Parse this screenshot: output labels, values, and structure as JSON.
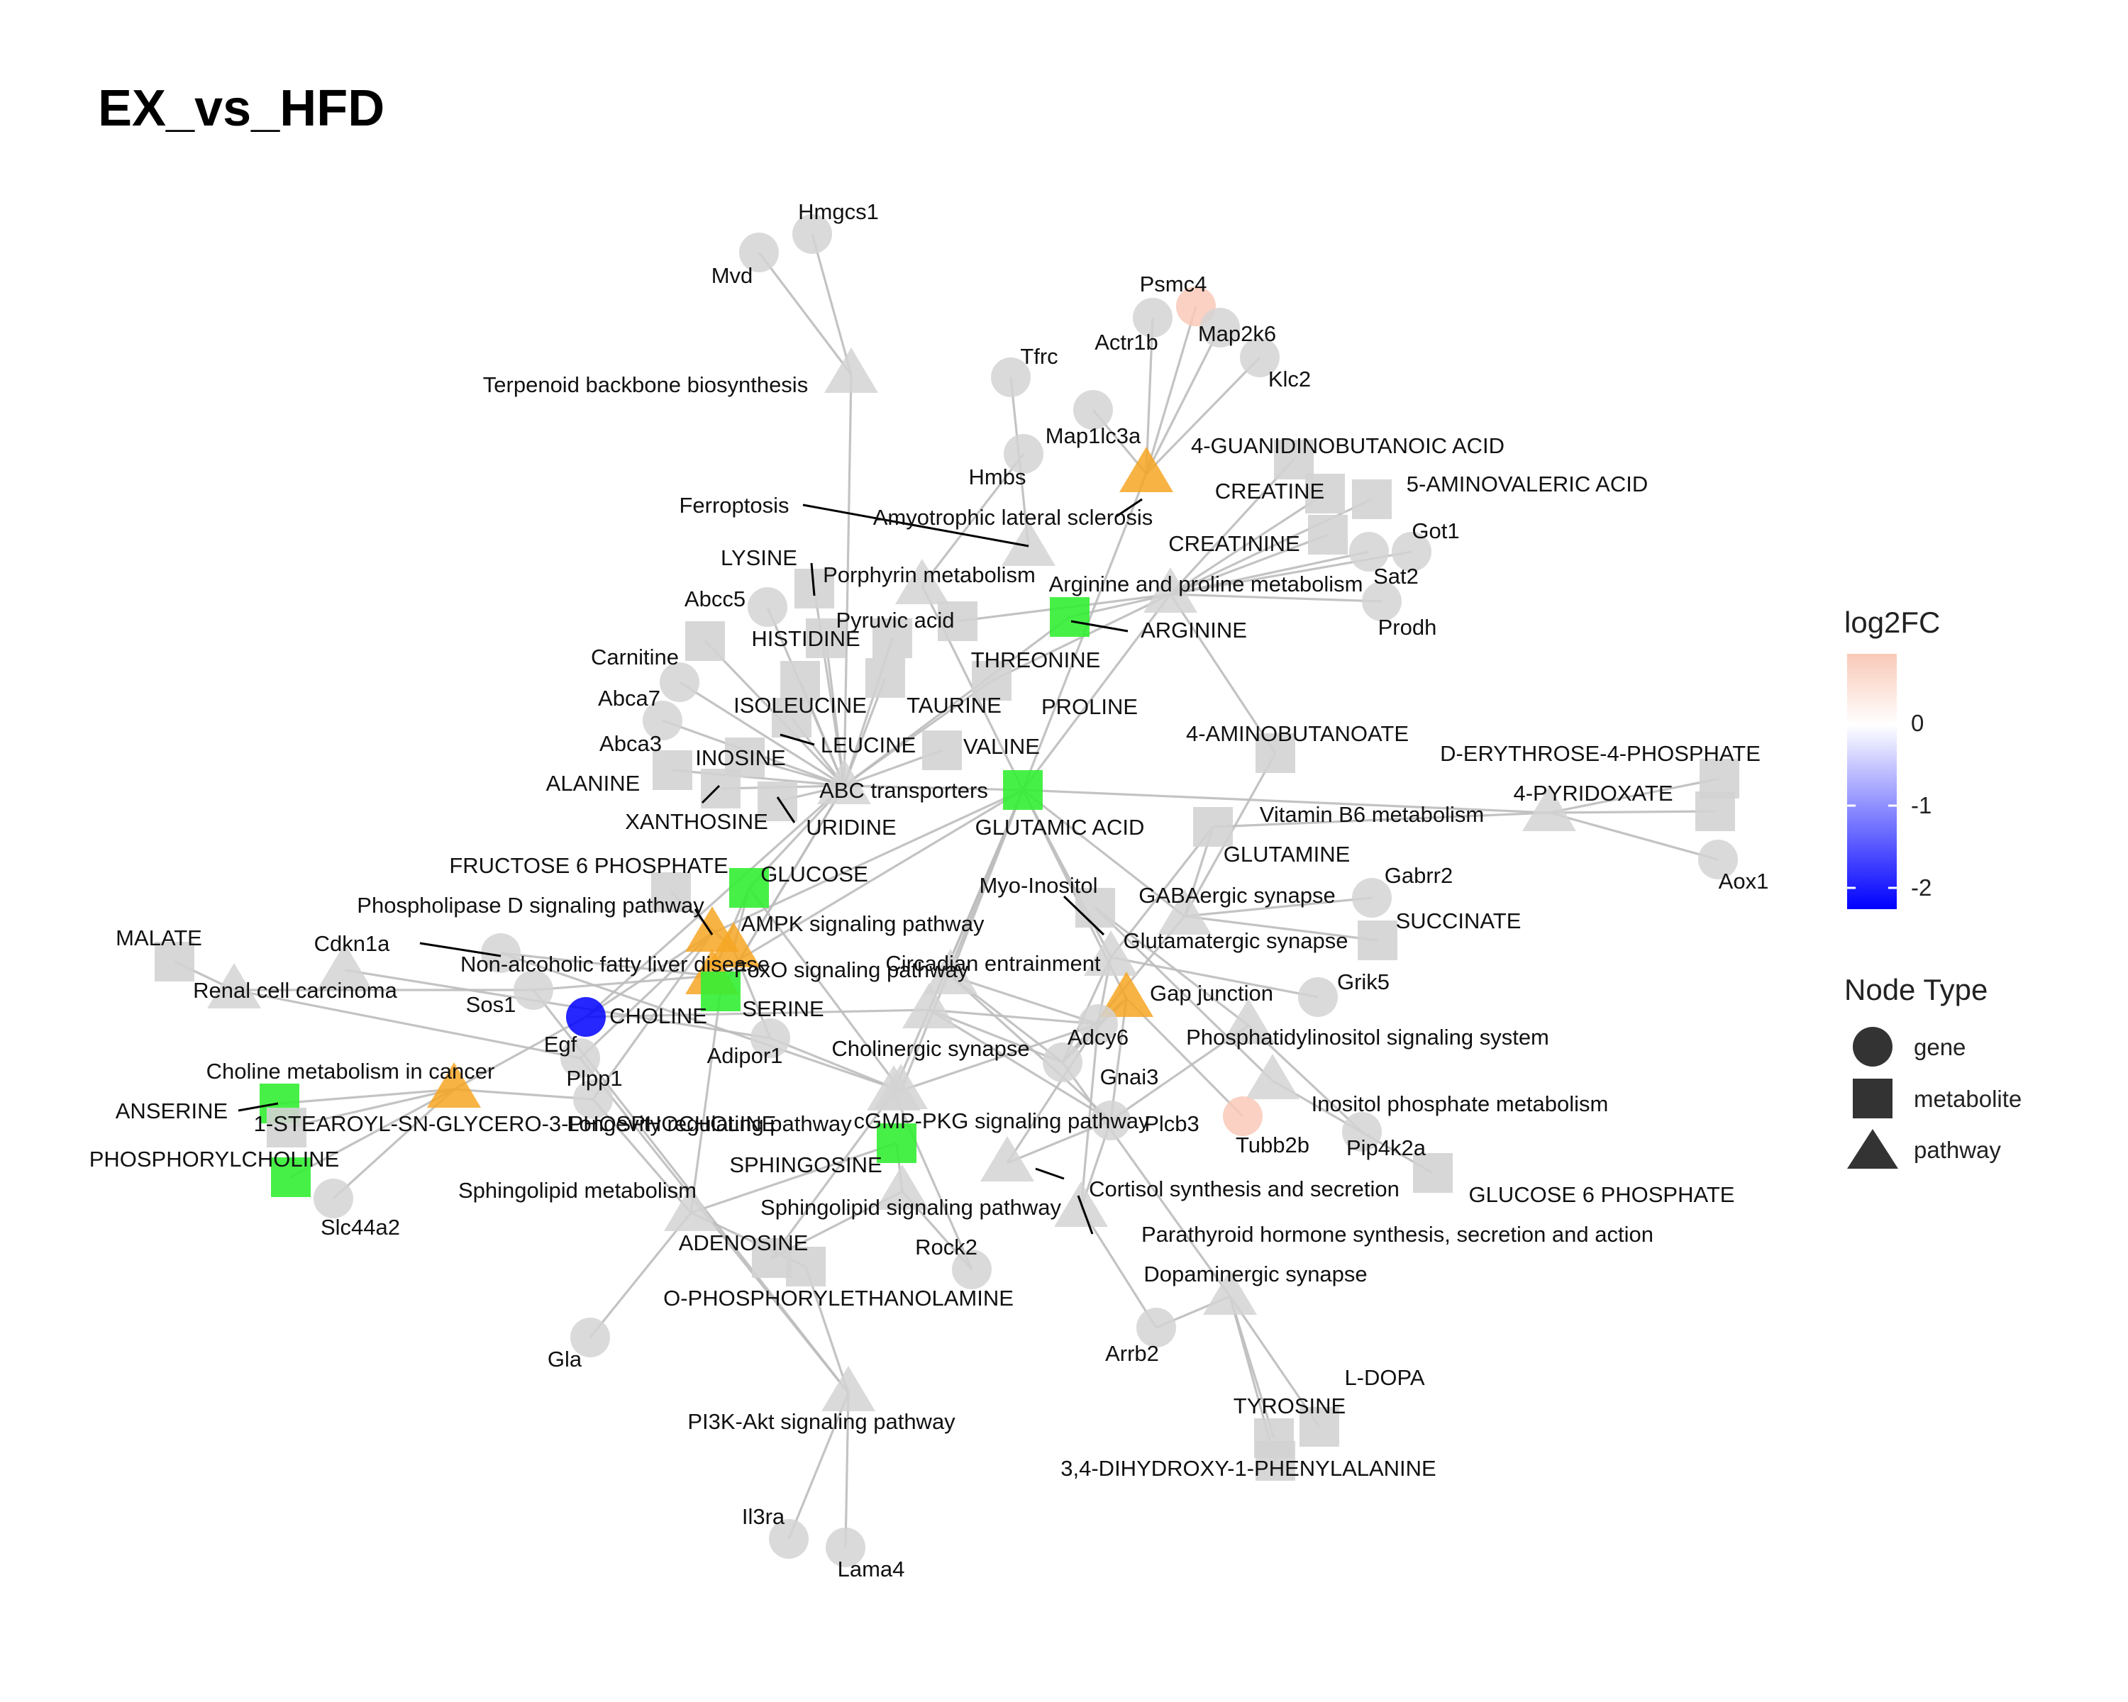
{
  "title": "EX_vs_HFD",
  "colors": {
    "neutral": "#d3d3d3",
    "edge": "#bdbdbd",
    "up": "#f9c9b8",
    "down": "#0000ff",
    "green": "#33ee33",
    "orange": "#f6a623"
  },
  "legend": {
    "color_title": "log2FC",
    "color_ticks": [
      "0",
      "-1",
      "-2"
    ],
    "type_title": "Node Type",
    "types": [
      {
        "shape": "circle",
        "label": "gene"
      },
      {
        "shape": "square",
        "label": "metabolite"
      },
      {
        "shape": "triangle",
        "label": "pathway"
      }
    ]
  },
  "nodes": [
    {
      "id": "Hmgcs1",
      "label": "Hmgcs1",
      "shape": "circle",
      "fill": "neutral"
    },
    {
      "id": "Mvd",
      "label": "Mvd",
      "shape": "circle",
      "fill": "neutral"
    },
    {
      "id": "Terpenoid",
      "label": "Terpenoid backbone biosynthesis",
      "shape": "triangle",
      "fill": "neutral"
    },
    {
      "id": "Psmc4",
      "label": "Psmc4",
      "shape": "circle",
      "fill": "up"
    },
    {
      "id": "Actr1b",
      "label": "Actr1b",
      "shape": "circle",
      "fill": "neutral"
    },
    {
      "id": "Map2k6",
      "label": "Map2k6",
      "shape": "circle",
      "fill": "neutral"
    },
    {
      "id": "Klc2",
      "label": "Klc2",
      "shape": "circle",
      "fill": "neutral"
    },
    {
      "id": "Tfrc",
      "label": "Tfrc",
      "shape": "circle",
      "fill": "neutral"
    },
    {
      "id": "Map1lc3a",
      "label": "Map1lc3a",
      "shape": "circle",
      "fill": "neutral"
    },
    {
      "id": "Hmbs",
      "label": "Hmbs",
      "shape": "circle",
      "fill": "neutral"
    },
    {
      "id": "GBA",
      "label": "4-GUANIDINOBUTANOIC ACID",
      "shape": "square",
      "fill": "neutral"
    },
    {
      "id": "Creatine",
      "label": "CREATINE",
      "shape": "square",
      "fill": "neutral"
    },
    {
      "id": "AVA",
      "label": "5-AMINOVALERIC ACID",
      "shape": "square",
      "fill": "neutral"
    },
    {
      "id": "ALS",
      "label": "Amyotrophic lateral sclerosis",
      "shape": "triangle",
      "fill": "orange"
    },
    {
      "id": "Ferroptosis",
      "label": "Ferroptosis",
      "shape": "triangle",
      "fill": "neutral"
    },
    {
      "id": "Creatinine",
      "label": "CREATININE",
      "shape": "square",
      "fill": "neutral"
    },
    {
      "id": "Got1",
      "label": "Got1",
      "shape": "circle",
      "fill": "neutral"
    },
    {
      "id": "Sat2",
      "label": "Sat2",
      "shape": "circle",
      "fill": "neutral"
    },
    {
      "id": "Prodh",
      "label": "Prodh",
      "shape": "circle",
      "fill": "neutral"
    },
    {
      "id": "Lysine",
      "label": "LYSINE",
      "shape": "square",
      "fill": "neutral"
    },
    {
      "id": "Porphyrin",
      "label": "Porphyrin metabolism",
      "shape": "triangle",
      "fill": "neutral"
    },
    {
      "id": "ArgPro",
      "label": "Arginine and proline metabolism",
      "shape": "triangle",
      "fill": "neutral"
    },
    {
      "id": "Abcc5",
      "label": "Abcc5",
      "shape": "circle",
      "fill": "neutral"
    },
    {
      "id": "Pyruvic",
      "label": "Pyruvic acid",
      "shape": "square",
      "fill": "neutral"
    },
    {
      "id": "Arginine",
      "label": "ARGININE",
      "shape": "square",
      "fill": "green"
    },
    {
      "id": "Histidine",
      "label": "HISTIDINE",
      "shape": "square",
      "fill": "neutral"
    },
    {
      "id": "Threonine",
      "label": "THREONINE",
      "shape": "square",
      "fill": "neutral"
    },
    {
      "id": "Carnitine",
      "label": "Carnitine",
      "shape": "square",
      "fill": "neutral"
    },
    {
      "id": "Abca7",
      "label": "Abca7",
      "shape": "circle",
      "fill": "neutral"
    },
    {
      "id": "Isoleucine",
      "label": "ISOLEUCINE",
      "shape": "square",
      "fill": "neutral"
    },
    {
      "id": "Taurine",
      "label": "TAURINE",
      "shape": "square",
      "fill": "neutral"
    },
    {
      "id": "Proline",
      "label": "PROLINE",
      "shape": "square",
      "fill": "neutral"
    },
    {
      "id": "Abca3",
      "label": "Abca3",
      "shape": "circle",
      "fill": "neutral"
    },
    {
      "id": "Leucine",
      "label": "LEUCINE",
      "shape": "square",
      "fill": "neutral"
    },
    {
      "id": "Valine",
      "label": "VALINE",
      "shape": "square",
      "fill": "neutral"
    },
    {
      "id": "GABA",
      "label": "4-AMINOBUTANOATE",
      "shape": "square",
      "fill": "neutral"
    },
    {
      "id": "Inosine",
      "label": "INOSINE",
      "shape": "square",
      "fill": "neutral"
    },
    {
      "id": "Alanine",
      "label": "ALANINE",
      "shape": "square",
      "fill": "neutral"
    },
    {
      "id": "ABC",
      "label": "ABC transporters",
      "shape": "triangle",
      "fill": "neutral"
    },
    {
      "id": "E4P",
      "label": "D-ERYTHROSE-4-PHOSPHATE",
      "shape": "square",
      "fill": "neutral"
    },
    {
      "id": "Pyridoxate",
      "label": "4-PYRIDOXATE",
      "shape": "square",
      "fill": "neutral"
    },
    {
      "id": "Xanthosine",
      "label": "XANTHOSINE",
      "shape": "square",
      "fill": "neutral"
    },
    {
      "id": "Uridine",
      "label": "URIDINE",
      "shape": "square",
      "fill": "neutral"
    },
    {
      "id": "Glutamic",
      "label": "GLUTAMIC ACID",
      "shape": "square",
      "fill": "green"
    },
    {
      "id": "VitB6",
      "label": "Vitamin B6 metabolism",
      "shape": "triangle",
      "fill": "neutral"
    },
    {
      "id": "Glutamine",
      "label": "GLUTAMINE",
      "shape": "square",
      "fill": "neutral"
    },
    {
      "id": "Aox1",
      "label": "Aox1",
      "shape": "circle",
      "fill": "neutral"
    },
    {
      "id": "F6P",
      "label": "FRUCTOSE 6 PHOSPHATE",
      "shape": "square",
      "fill": "neutral"
    },
    {
      "id": "Glucose",
      "label": "GLUCOSE",
      "shape": "square",
      "fill": "green"
    },
    {
      "id": "Gabrr2",
      "label": "Gabrr2",
      "shape": "circle",
      "fill": "neutral"
    },
    {
      "id": "MyoInositol",
      "label": "Myo-Inositol",
      "shape": "square",
      "fill": "neutral"
    },
    {
      "id": "GABAergic",
      "label": "GABAergic synapse",
      "shape": "triangle",
      "fill": "neutral"
    },
    {
      "id": "PLD",
      "label": "Phospholipase D signaling pathway",
      "shape": "triangle",
      "fill": "orange"
    },
    {
      "id": "Succinate",
      "label": "SUCCINATE",
      "shape": "square",
      "fill": "neutral"
    },
    {
      "id": "AMPK",
      "label": "AMPK signaling pathway",
      "shape": "triangle",
      "fill": "orange"
    },
    {
      "id": "Malate",
      "label": "MALATE",
      "shape": "square",
      "fill": "neutral"
    },
    {
      "id": "Cdkn1a",
      "label": "Cdkn1a",
      "shape": "circle",
      "fill": "neutral"
    },
    {
      "id": "Glutamatergic",
      "label": "Glutamatergic synapse",
      "shape": "triangle",
      "fill": "neutral"
    },
    {
      "id": "NAFLD",
      "label": "Non-alcoholic fatty liver disease",
      "shape": "triangle",
      "fill": "neutral"
    },
    {
      "id": "FoxO",
      "label": "FoxO signaling pathway",
      "shape": "triangle",
      "fill": "orange"
    },
    {
      "id": "Circadian",
      "label": "Circadian entrainment",
      "shape": "triangle",
      "fill": "neutral"
    },
    {
      "id": "RCC",
      "label": "Renal cell carcinoma",
      "shape": "triangle",
      "fill": "neutral"
    },
    {
      "id": "GapJ",
      "label": "Gap junction",
      "shape": "triangle",
      "fill": "orange"
    },
    {
      "id": "Grik5",
      "label": "Grik5",
      "shape": "circle",
      "fill": "neutral"
    },
    {
      "id": "Sos1",
      "label": "Sos1",
      "shape": "circle",
      "fill": "neutral"
    },
    {
      "id": "Choline",
      "label": "CHOLINE",
      "shape": "circle",
      "fill": "down"
    },
    {
      "id": "Serine",
      "label": "SERINE",
      "shape": "square",
      "fill": "green"
    },
    {
      "id": "Egf",
      "label": "Egf",
      "shape": "circle",
      "fill": "neutral"
    },
    {
      "id": "Adcy6",
      "label": "Adcy6",
      "shape": "circle",
      "fill": "neutral"
    },
    {
      "id": "PIsig",
      "label": "Phosphatidylinositol signaling system",
      "shape": "triangle",
      "fill": "neutral"
    },
    {
      "id": "Adipor1",
      "label": "Adipor1",
      "shape": "circle",
      "fill": "neutral"
    },
    {
      "id": "Cholinergic",
      "label": "Cholinergic synapse",
      "shape": "triangle",
      "fill": "neutral"
    },
    {
      "id": "Gnai3",
      "label": "Gnai3",
      "shape": "circle",
      "fill": "neutral"
    },
    {
      "id": "CholineCancer",
      "label": "Choline metabolism in cancer",
      "shape": "triangle",
      "fill": "orange"
    },
    {
      "id": "Plpp1",
      "label": "Plpp1",
      "shape": "circle",
      "fill": "neutral"
    },
    {
      "id": "InsP",
      "label": "Inositol phosphate metabolism",
      "shape": "triangle",
      "fill": "neutral"
    },
    {
      "id": "Anserine",
      "label": "ANSERINE",
      "shape": "square",
      "fill": "green"
    },
    {
      "id": "Stearoyl",
      "label": "1-STEAROYL-SN-GLYCERO-3-PHOSPHOCHOLINE",
      "shape": "square",
      "fill": "neutral"
    },
    {
      "id": "Longevity",
      "label": "Longevity regulating pathway",
      "shape": "triangle",
      "fill": "neutral"
    },
    {
      "id": "cGMP",
      "label": "cGMP-PKG signaling pathway",
      "shape": "triangle",
      "fill": "neutral"
    },
    {
      "id": "Plcb3",
      "label": "Plcb3",
      "shape": "circle",
      "fill": "neutral"
    },
    {
      "id": "Tubb2b",
      "label": "Tubb2b",
      "shape": "circle",
      "fill": "up"
    },
    {
      "id": "Pip4k2a",
      "label": "Pip4k2a",
      "shape": "circle",
      "fill": "neutral"
    },
    {
      "id": "Phosphorylcholine",
      "label": "PHOSPHORYLCHOLINE",
      "shape": "square",
      "fill": "green"
    },
    {
      "id": "Sphingosine",
      "label": "SPHINGOSINE",
      "shape": "square",
      "fill": "green"
    },
    {
      "id": "Cortisol",
      "label": "Cortisol synthesis and secretion",
      "shape": "triangle",
      "fill": "neutral"
    },
    {
      "id": "G6P",
      "label": "GLUCOSE 6 PHOSPHATE",
      "shape": "square",
      "fill": "neutral"
    },
    {
      "id": "SphMet",
      "label": "Sphingolipid metabolism",
      "shape": "triangle",
      "fill": "neutral"
    },
    {
      "id": "SphSig",
      "label": "Sphingolipid signaling pathway",
      "shape": "triangle",
      "fill": "neutral"
    },
    {
      "id": "Slc44a2",
      "label": "Slc44a2",
      "shape": "circle",
      "fill": "neutral"
    },
    {
      "id": "Adenosine",
      "label": "ADENOSINE",
      "shape": "square",
      "fill": "neutral"
    },
    {
      "id": "Rock2",
      "label": "Rock2",
      "shape": "circle",
      "fill": "neutral"
    },
    {
      "id": "PTH",
      "label": "Parathyroid hormone synthesis, secretion and action",
      "shape": "triangle",
      "fill": "neutral"
    },
    {
      "id": "Dopaminergic",
      "label": "Dopaminergic synapse",
      "shape": "triangle",
      "fill": "neutral"
    },
    {
      "id": "OPE",
      "label": "O-PHOSPHORYLETHANOLAMINE",
      "shape": "square",
      "fill": "neutral"
    },
    {
      "id": "Gla",
      "label": "Gla",
      "shape": "circle",
      "fill": "neutral"
    },
    {
      "id": "Arrb2",
      "label": "Arrb2",
      "shape": "circle",
      "fill": "neutral"
    },
    {
      "id": "LDOPA",
      "label": "L-DOPA",
      "shape": "square",
      "fill": "neutral"
    },
    {
      "id": "Tyrosine",
      "label": "TYROSINE",
      "shape": "square",
      "fill": "neutral"
    },
    {
      "id": "PI3K",
      "label": "PI3K-Akt signaling pathway",
      "shape": "triangle",
      "fill": "neutral"
    },
    {
      "id": "DOPA34",
      "label": "3,4-DIHYDROXY-1-PHENYLALANINE",
      "shape": "square",
      "fill": "neutral"
    },
    {
      "id": "Il3ra",
      "label": "Il3ra",
      "shape": "circle",
      "fill": "neutral"
    },
    {
      "id": "Lama4",
      "label": "Lama4",
      "shape": "circle",
      "fill": "neutral"
    }
  ],
  "edges": [
    [
      "Hmgcs1",
      "Terpenoid"
    ],
    [
      "Mvd",
      "Terpenoid"
    ],
    [
      "Terpenoid",
      "ABC"
    ],
    [
      "Psmc4",
      "ALS"
    ],
    [
      "Actr1b",
      "ALS"
    ],
    [
      "Map2k6",
      "ALS"
    ],
    [
      "Klc2",
      "ALS"
    ],
    [
      "Map1lc3a",
      "ALS"
    ],
    [
      "Tfrc",
      "Ferroptosis"
    ],
    [
      "Hmbs",
      "Porphyrin"
    ],
    [
      "ALS",
      "Glutamic"
    ],
    [
      "GBA",
      "ArgPro"
    ],
    [
      "Creatine",
      "ArgPro"
    ],
    [
      "AVA",
      "ArgPro"
    ],
    [
      "Creatinine",
      "ArgPro"
    ],
    [
      "Got1",
      "ArgPro"
    ],
    [
      "Sat2",
      "ArgPro"
    ],
    [
      "Prodh",
      "ArgPro"
    ],
    [
      "ArgPro",
      "Arginine"
    ],
    [
      "ArgPro",
      "Proline"
    ],
    [
      "ArgPro",
      "Glutamic"
    ],
    [
      "ArgPro",
      "Pyruvic"
    ],
    [
      "ArgPro",
      "GABA"
    ],
    [
      "Lysine",
      "ABC"
    ],
    [
      "Abcc5",
      "ABC"
    ],
    [
      "Histidine",
      "ABC"
    ],
    [
      "Threonine",
      "ABC"
    ],
    [
      "Carnitine",
      "ABC"
    ],
    [
      "Abca7",
      "ABC"
    ],
    [
      "Isoleucine",
      "ABC"
    ],
    [
      "Taurine",
      "ABC"
    ],
    [
      "Proline",
      "ABC"
    ],
    [
      "Abca3",
      "ABC"
    ],
    [
      "Leucine",
      "ABC"
    ],
    [
      "Valine",
      "ABC"
    ],
    [
      "Inosine",
      "ABC"
    ],
    [
      "Alanine",
      "ABC"
    ],
    [
      "Xanthosine",
      "ABC"
    ],
    [
      "Uridine",
      "ABC"
    ],
    [
      "Glutamic",
      "ABC"
    ],
    [
      "Arginine",
      "ABC"
    ],
    [
      "Glucose",
      "ABC"
    ],
    [
      "Serine",
      "ABC"
    ],
    [
      "Choline",
      "ABC"
    ],
    [
      "Porphyrin",
      "Glutamic"
    ],
    [
      "Glutamic",
      "VitB6"
    ],
    [
      "E4P",
      "VitB6"
    ],
    [
      "Pyridoxate",
      "VitB6"
    ],
    [
      "Aox1",
      "VitB6"
    ],
    [
      "Glutamine",
      "VitB6"
    ],
    [
      "Glutamic",
      "GABAergic"
    ],
    [
      "Glutamine",
      "GABAergic"
    ],
    [
      "Gabrr2",
      "GABAergic"
    ],
    [
      "Succinate",
      "GABAergic"
    ],
    [
      "GABA",
      "GABAergic"
    ],
    [
      "Glutamic",
      "Glutamatergic"
    ],
    [
      "Glutamine",
      "Glutamatergic"
    ],
    [
      "Grik5",
      "Glutamatergic"
    ],
    [
      "Glutamic",
      "Circadian"
    ],
    [
      "Adcy6",
      "Glutamatergic"
    ],
    [
      "F6P",
      "AMPK"
    ],
    [
      "Glucose",
      "AMPK"
    ],
    [
      "Malate",
      "RCC"
    ],
    [
      "Cdkn1a",
      "FoxO"
    ],
    [
      "Sos1",
      "RCC"
    ],
    [
      "Sos1",
      "FoxO"
    ],
    [
      "Egf",
      "PLD"
    ],
    [
      "Egf",
      "RCC"
    ],
    [
      "Adipor1",
      "AMPK"
    ],
    [
      "Adipor1",
      "NAFLD"
    ],
    [
      "Glucose",
      "FoxO"
    ],
    [
      "Glutamic",
      "FoxO"
    ],
    [
      "Glutamic",
      "Cholinergic"
    ],
    [
      "Glutamic",
      "GapJ"
    ],
    [
      "Glutamic",
      "cGMP"
    ],
    [
      "Glutamic",
      "Longevity"
    ],
    [
      "Glutamic",
      "PLD"
    ],
    [
      "MyoInositol",
      "PIsig"
    ],
    [
      "MyoInositol",
      "InsP"
    ],
    [
      "Plcb3",
      "PIsig"
    ],
    [
      "Plcb3",
      "GapJ"
    ],
    [
      "Plcb3",
      "Circadian"
    ],
    [
      "Plcb3",
      "Cholinergic"
    ],
    [
      "Plcb3",
      "Cortisol"
    ],
    [
      "Plcb3",
      "PTH"
    ],
    [
      "Pip4k2a",
      "PIsig"
    ],
    [
      "Tubb2b",
      "GapJ"
    ],
    [
      "G6P",
      "InsP"
    ],
    [
      "Adcy6",
      "GapJ"
    ],
    [
      "Adcy6",
      "Circadian"
    ],
    [
      "Adcy6",
      "Cholinergic"
    ],
    [
      "Adcy6",
      "Cortisol"
    ],
    [
      "Adcy6",
      "PTH"
    ],
    [
      "Adcy6",
      "Longevity"
    ],
    [
      "Gnai3",
      "GapJ"
    ],
    [
      "Gnai3",
      "Circadian"
    ],
    [
      "Gnai3",
      "Cholinergic"
    ],
    [
      "Gnai3",
      "Dopaminergic"
    ],
    [
      "Gnai3",
      "Glutamatergic"
    ],
    [
      "Gnai3",
      "GABAergic"
    ],
    [
      "Choline",
      "CholineCancer"
    ],
    [
      "Choline",
      "Cholinergic"
    ],
    [
      "Plpp1",
      "CholineCancer"
    ],
    [
      "Plpp1",
      "PLD"
    ],
    [
      "Plpp1",
      "SphMet"
    ],
    [
      "Anserine",
      "CholineCancer"
    ],
    [
      "Stearoyl",
      "CholineCancer"
    ],
    [
      "Phosphorylcholine",
      "CholineCancer"
    ],
    [
      "Slc44a2",
      "CholineCancer"
    ],
    [
      "Choline",
      "PLD"
    ],
    [
      "Sphingosine",
      "SphMet"
    ],
    [
      "Sphingosine",
      "SphSig"
    ],
    [
      "Serine",
      "SphMet"
    ],
    [
      "Serine",
      "ABC"
    ],
    [
      "Adenosine",
      "SphSig"
    ],
    [
      "Adenosine",
      "cGMP"
    ],
    [
      "Rock2",
      "SphSig"
    ],
    [
      "Rock2",
      "cGMP"
    ],
    [
      "OPE",
      "SphMet"
    ],
    [
      "Gla",
      "SphMet"
    ],
    [
      "OPE",
      "PI3K"
    ],
    [
      "Arrb2",
      "Dopaminergic"
    ],
    [
      "LDOPA",
      "Dopaminergic"
    ],
    [
      "Tyrosine",
      "Dopaminergic"
    ],
    [
      "DOPA34",
      "Dopaminergic"
    ],
    [
      "Arrb2",
      "PTH"
    ],
    [
      "PI3K",
      "Il3ra"
    ],
    [
      "PI3K",
      "Lama4"
    ],
    [
      "PI3K",
      "Egf"
    ],
    [
      "PI3K",
      "Sos1"
    ],
    [
      "Cdkn1a",
      "Longevity"
    ],
    [
      "Adipor1",
      "Longevity"
    ],
    [
      "Glucose",
      "Longevity"
    ]
  ]
}
